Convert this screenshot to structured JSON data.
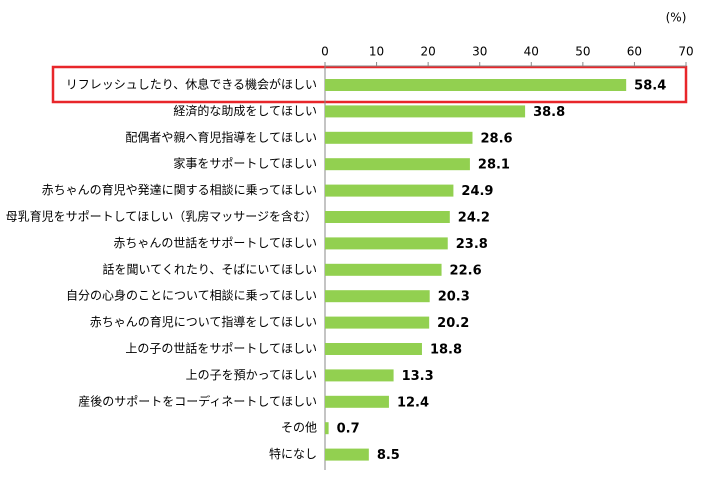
{
  "chart_data": {
    "type": "bar",
    "orientation": "horizontal",
    "unit_label": "(%)",
    "categories": [
      "リフレッシュしたり、休息できる機会がほしい",
      "経済的な助成をしてほしい",
      "配偶者や親へ育児指導をしてほしい",
      "家事をサポートしてほしい",
      "赤ちゃんの育児や発達に関する相談に乗ってほしい",
      "母乳育児をサポートしてほしい（乳房マッサージを含む）",
      "赤ちゃんの世話をサポートしてほしい",
      "話を聞いてくれたり、そばにいてほしい",
      "自分の心身のことについて相談に乗ってほしい",
      "赤ちゃんの育児について指導をしてほしい",
      "上の子の世話をサポートしてほしい",
      "上の子を預かってほしい",
      "産後のサポートをコーディネートしてほしい",
      "その他",
      "特になし"
    ],
    "values": [
      58.4,
      38.8,
      28.6,
      28.1,
      24.9,
      24.2,
      23.8,
      22.6,
      20.3,
      20.2,
      18.8,
      13.3,
      12.4,
      0.7,
      8.5
    ],
    "color": "#92d050",
    "xlim": [
      0,
      70
    ],
    "xticks": [
      0,
      10,
      20,
      30,
      40,
      50,
      60,
      70
    ],
    "grid": false
  }
}
